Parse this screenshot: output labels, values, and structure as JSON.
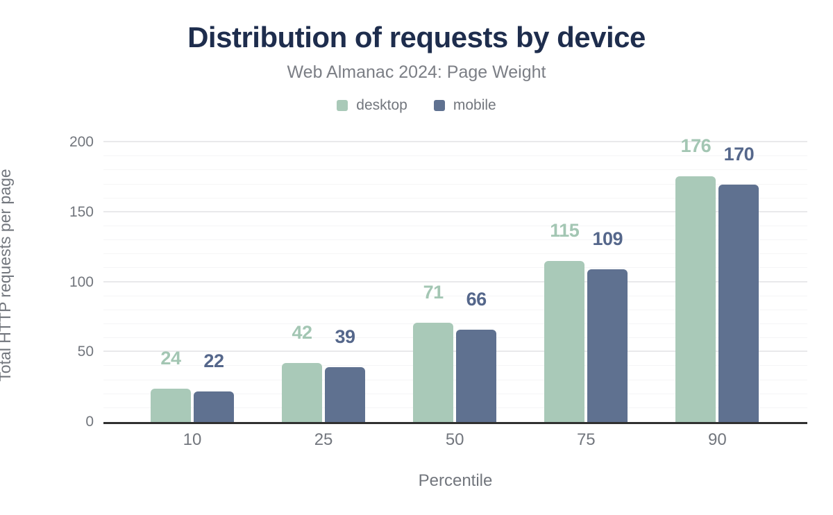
{
  "header": {
    "title": "Distribution of requests by device",
    "subtitle": "Web Almanac 2024: Page Weight"
  },
  "legend": {
    "items": [
      {
        "label": "desktop",
        "color": "#a9c9b8"
      },
      {
        "label": "mobile",
        "color": "#5f7190"
      }
    ]
  },
  "chart_data": {
    "type": "bar",
    "title": "Distribution of requests by device",
    "subtitle": "Web Almanac 2024: Page Weight",
    "categories": [
      "10",
      "25",
      "50",
      "75",
      "90"
    ],
    "series": [
      {
        "name": "desktop",
        "color": "#a9c9b8",
        "label_color": "#a3c6b3",
        "values": [
          24,
          42,
          71,
          115,
          176
        ]
      },
      {
        "name": "mobile",
        "color": "#5f7190",
        "label_color": "#55678b",
        "values": [
          22,
          39,
          66,
          109,
          170
        ]
      }
    ],
    "xlabel": "Percentile",
    "ylabel": "Total HTTP requests per page",
    "ylim": [
      0,
      210
    ],
    "yticks": [
      0,
      50,
      100,
      150,
      200
    ],
    "minor_tick_step": 10,
    "grid": true,
    "legend_position": "top",
    "group_center_percents": [
      12.62,
      31.27,
      49.92,
      68.57,
      87.22
    ]
  },
  "colors": {
    "title": "#1e2d4d",
    "subtitle": "#7b7e85",
    "axis_text": "#72767d",
    "axis_line": "#303030",
    "grid_major": "#e9e9eb",
    "grid_minor": "#f5f5f6",
    "background": "#ffffff"
  }
}
